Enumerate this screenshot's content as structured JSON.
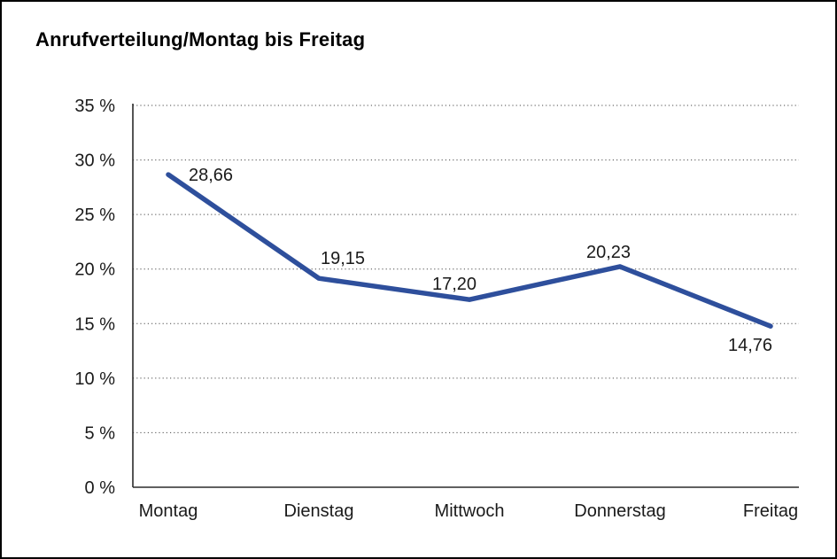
{
  "page": {
    "title": "Anrufverteilung/Montag bis Freitag"
  },
  "chart_data": {
    "type": "line",
    "title": "Anrufverteilung/Montag bis Freitag",
    "categories": [
      "Montag",
      "Dienstag",
      "Mittwoch",
      "Donnerstag",
      "Freitag"
    ],
    "values": [
      28.66,
      19.15,
      17.2,
      20.23,
      14.76
    ],
    "value_labels": [
      "28,66",
      "19,15",
      "17,20",
      "20,23",
      "14,76"
    ],
    "xlabel": "",
    "ylabel": "",
    "ylim": [
      0,
      35
    ],
    "yticks": [
      0,
      5,
      10,
      15,
      20,
      25,
      30,
      35
    ],
    "ytick_labels": [
      "0 %",
      "5 %",
      "10 %",
      "15 %",
      "20 %",
      "25 %",
      "30 %",
      "35 %"
    ],
    "grid": "dotted-horizontal",
    "legend": "none",
    "line_color": "#2e4f9c",
    "text_color": "#1a1a1a"
  }
}
